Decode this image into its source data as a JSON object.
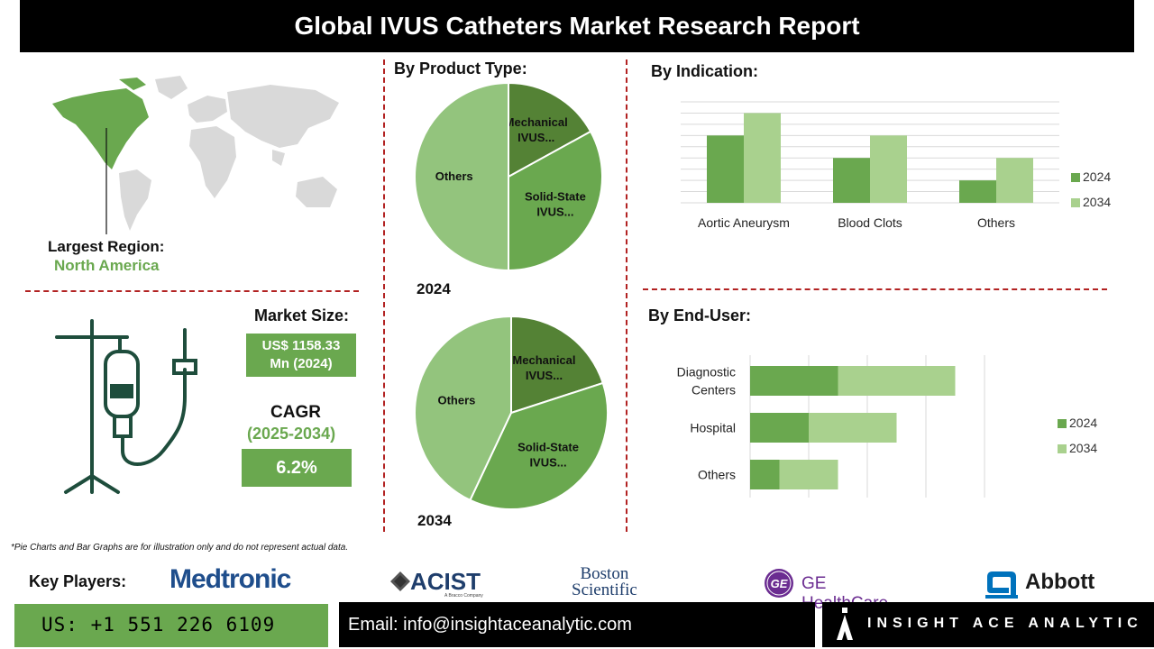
{
  "header": {
    "title": "Global IVUS Catheters Market Research Report"
  },
  "region": {
    "label": "Largest Region:",
    "value": "North America"
  },
  "market": {
    "size_label": "Market Size:",
    "size_value_line1": "US$ 1158.33",
    "size_value_line2": "Mn (2024)",
    "cagr_label": "CAGR",
    "cagr_period": "(2025-2034)",
    "cagr_value": "6.2%"
  },
  "product_type": {
    "title": "By Product Type:"
  },
  "indication": {
    "title": "By Indication:"
  },
  "end_user": {
    "title": "By End-User:"
  },
  "footnote": "*Pie Charts and Bar Graphs are for illustration only and do not represent actual data.",
  "key_players": {
    "label": "Key Players:",
    "logos": [
      "Medtronic",
      "ACIST",
      "A Bracco Company",
      "Boston",
      "Scientific",
      "GE HealthCare",
      "GE",
      "Abbott"
    ]
  },
  "contact": {
    "phone": "US: +1 551 226 6109",
    "email": "Email: info@insightaceanalytic.com",
    "brand": "INSIGHT ACE ANALYTIC"
  },
  "colors": {
    "dark_green": "#548235",
    "mid_green": "#6aa84f",
    "light_green": "#93c47d",
    "pale_green": "#a9d18e",
    "map_gray": "#d9d9d9",
    "divider_red": "#b22222"
  },
  "icons": [
    "world-map-icon",
    "iv-drip-icon",
    "logo-mark-icon"
  ],
  "chart_data": [
    {
      "type": "pie",
      "title": "2024",
      "labels": [
        "Mechanical IVUS...",
        "Solid-State IVUS...",
        "Others"
      ],
      "values": [
        17,
        33,
        50
      ],
      "colors": [
        "#548235",
        "#6aa84f",
        "#93c47d"
      ]
    },
    {
      "type": "pie",
      "title": "2034",
      "labels": [
        "Mechanical IVUS...",
        "Solid-State IVUS...",
        "Others"
      ],
      "values": [
        20,
        37,
        43
      ],
      "colors": [
        "#548235",
        "#6aa84f",
        "#93c47d"
      ]
    },
    {
      "type": "bar",
      "orientation": "vertical",
      "categories": [
        "Aortic Aneurysm",
        "Blood Clots",
        "Others"
      ],
      "series": [
        {
          "name": "2024",
          "values": [
            3,
            2,
            1
          ],
          "color": "#6aa84f"
        },
        {
          "name": "2034",
          "values": [
            4,
            3,
            2
          ],
          "color": "#a9d18e"
        }
      ],
      "ylim": [
        0,
        4.5
      ],
      "grid": true,
      "legend": "right"
    },
    {
      "type": "bar",
      "orientation": "horizontal-stacked",
      "categories": [
        "Diagnostic Centers",
        "Hospital",
        "Others"
      ],
      "series": [
        {
          "name": "2024",
          "values": [
            1.5,
            1.0,
            0.5
          ],
          "color": "#6aa84f"
        },
        {
          "name": "2034",
          "values": [
            2.0,
            1.5,
            1.0
          ],
          "color": "#a9d18e"
        }
      ],
      "xlim": [
        0,
        4
      ],
      "grid": true,
      "legend": "right"
    }
  ]
}
